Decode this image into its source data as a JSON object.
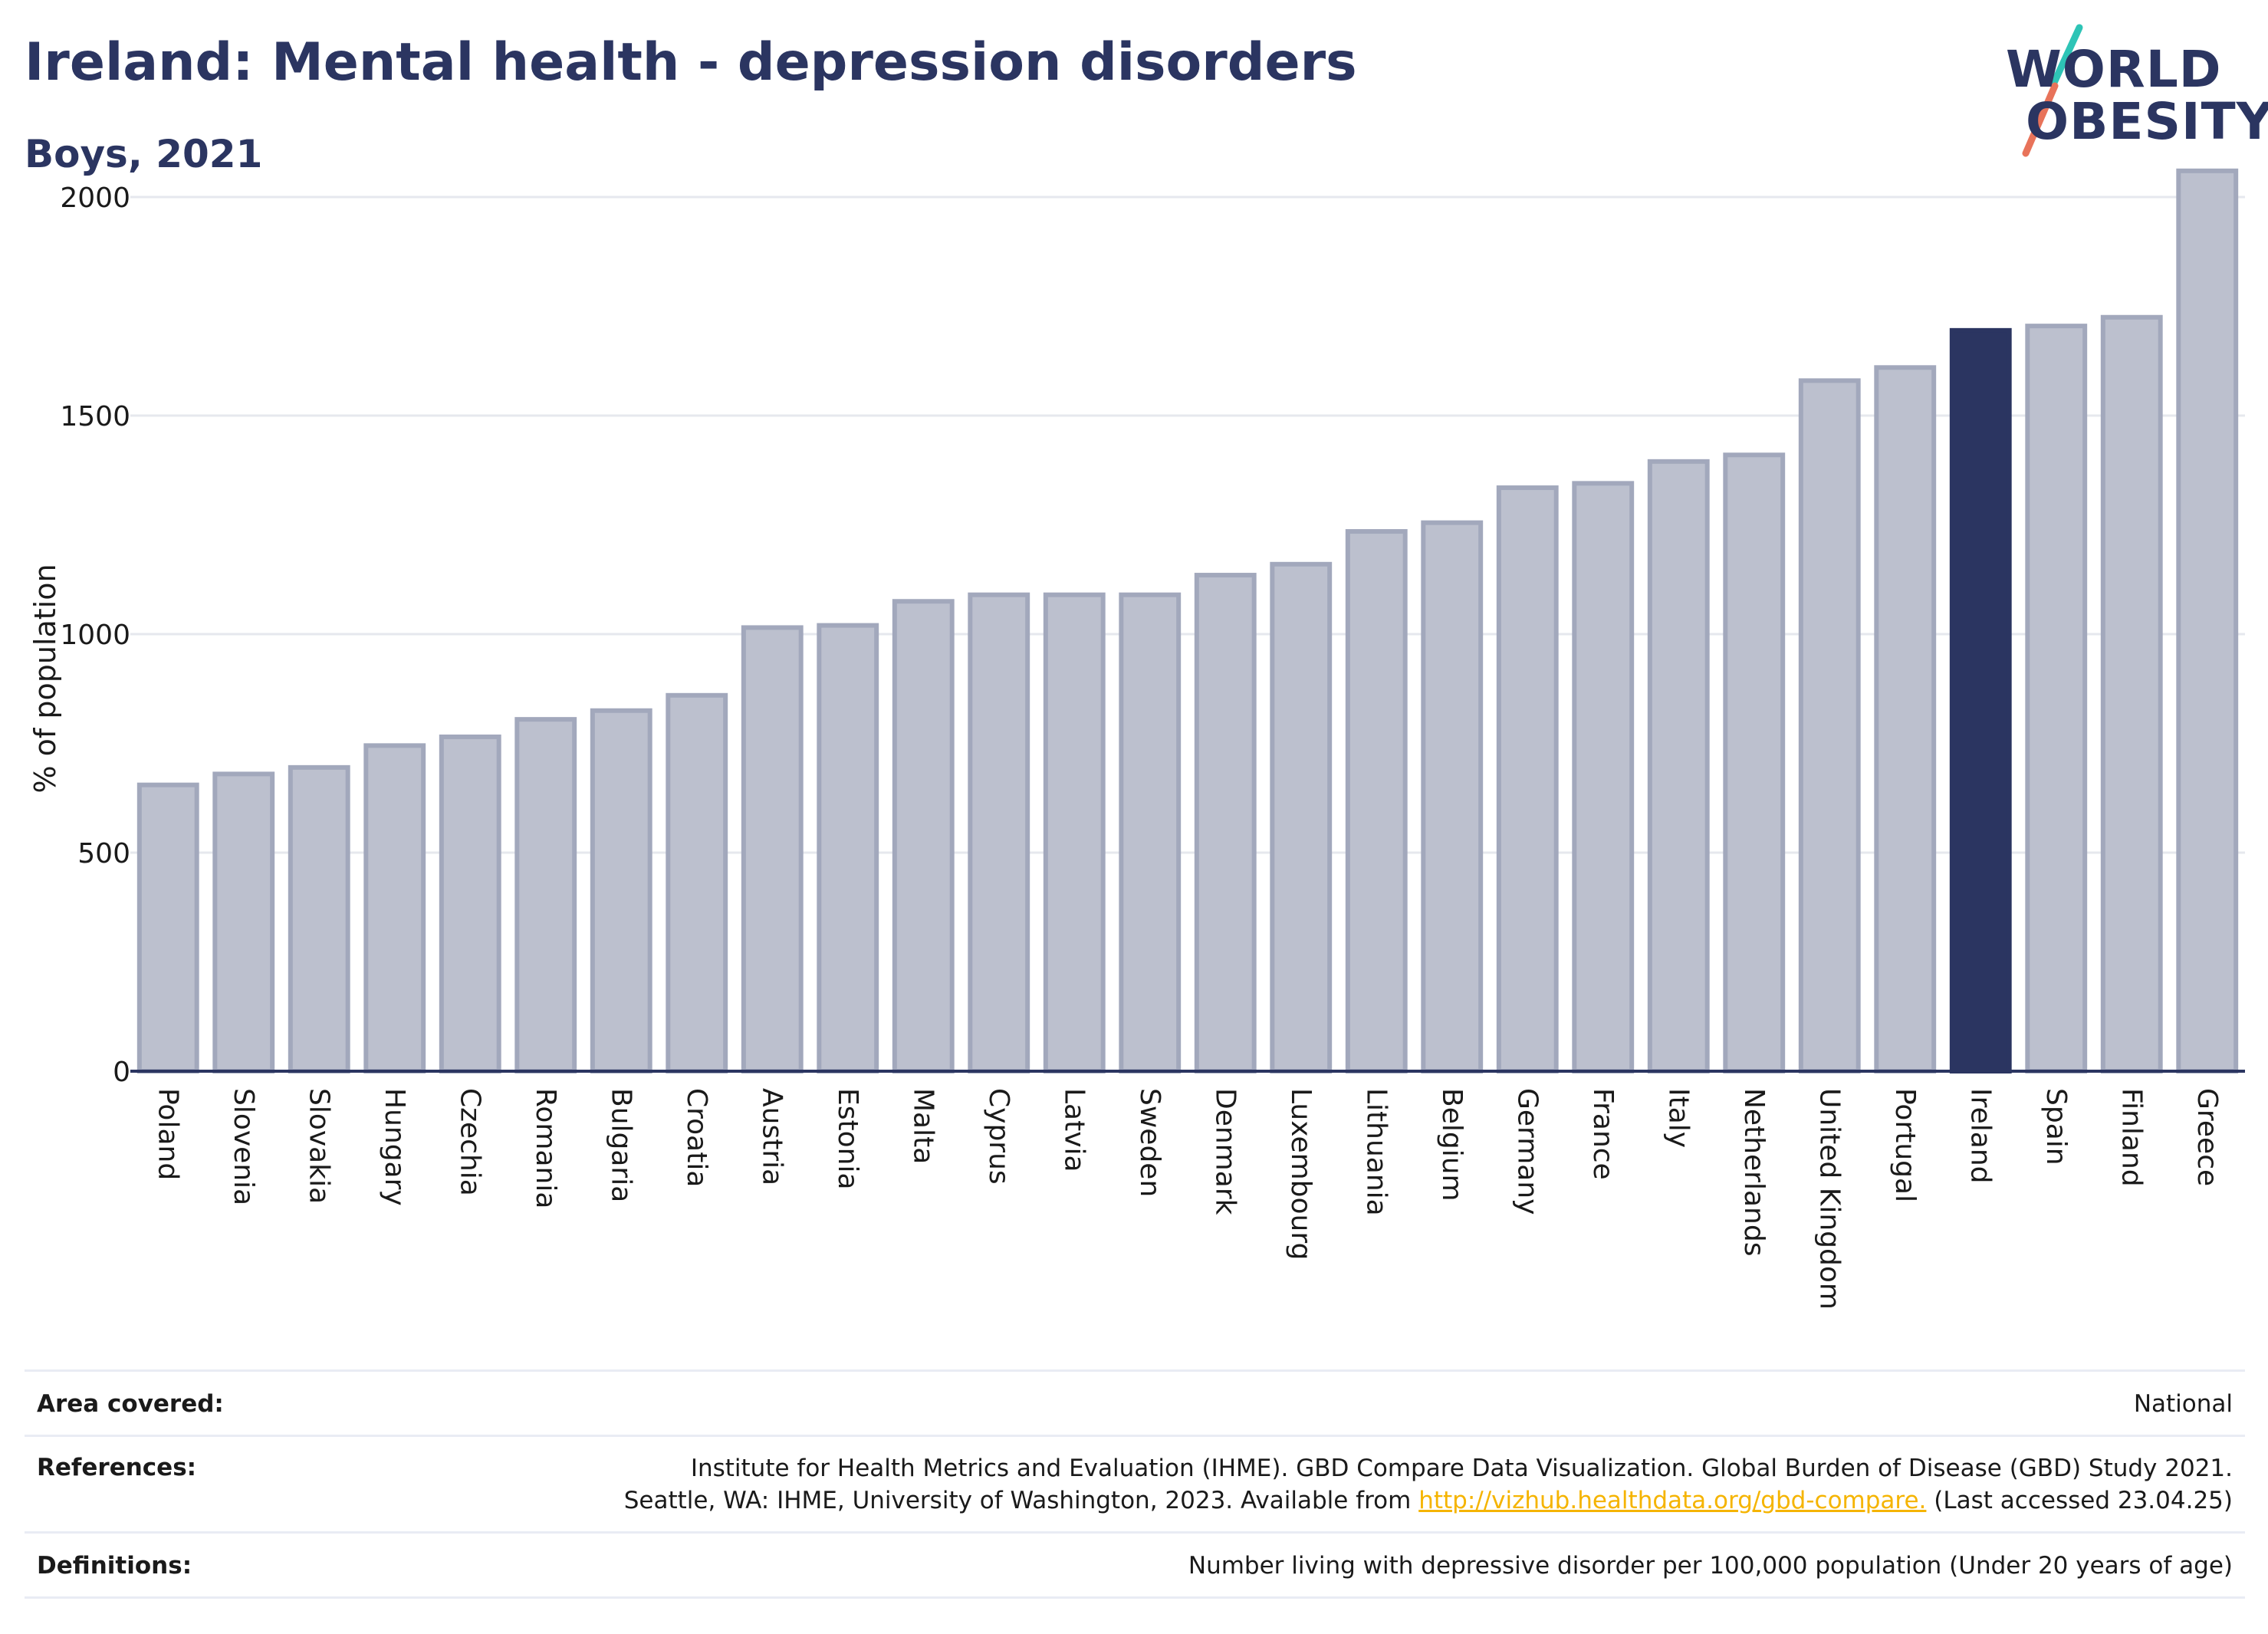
{
  "header": {
    "title": "Ireland: Mental health - depression disorders",
    "subtitle": "Boys, 2021"
  },
  "logo": {
    "line1": "WORLD",
    "line2": "OBESITY",
    "brand_color": "#2b3561",
    "slash_colors": [
      "#2ec4b6",
      "#e8735a"
    ]
  },
  "chart_data": {
    "type": "bar",
    "ylabel": "% of population",
    "ylim": [
      0,
      2100
    ],
    "yticks": [
      0,
      500,
      1000,
      1500,
      2000
    ],
    "grid": true,
    "highlight": "Ireland",
    "colors": {
      "default_fill": "#bcc0ce",
      "default_stroke": "#a2a8bc",
      "highlight_fill": "#2b3561"
    },
    "categories": [
      "Poland",
      "Slovenia",
      "Slovakia",
      "Hungary",
      "Czechia",
      "Romania",
      "Bulgaria",
      "Croatia",
      "Austria",
      "Estonia",
      "Malta",
      "Cyprus",
      "Latvia",
      "Sweden",
      "Denmark",
      "Luxembourg",
      "Lithuania",
      "Belgium",
      "Germany",
      "France",
      "Italy",
      "Netherlands",
      "United Kingdom",
      "Portugal",
      "Ireland",
      "Spain",
      "Finland",
      "Greece"
    ],
    "values": [
      655,
      680,
      695,
      745,
      765,
      805,
      825,
      860,
      1015,
      1020,
      1075,
      1090,
      1090,
      1090,
      1135,
      1160,
      1235,
      1255,
      1335,
      1345,
      1395,
      1410,
      1580,
      1610,
      1695,
      1705,
      1725,
      2060
    ]
  },
  "footer": {
    "area_label": "Area covered:",
    "area_value": "National",
    "references_label": "References:",
    "references_line1": "Institute for Health Metrics and Evaluation (IHME). GBD Compare Data Visualization. Global Burden of Disease (GBD) Study 2021.",
    "references_line2_prefix": "Seattle, WA: IHME, University of Washington, 2023. Available from ",
    "references_link": "http://vizhub.healthdata.org/gbd-compare.",
    "references_line2_suffix": " (Last accessed 23.04.25)",
    "definitions_label": "Definitions:",
    "definitions_value": "Number living with depressive disorder per 100,000 population (Under 20 years of age)"
  }
}
